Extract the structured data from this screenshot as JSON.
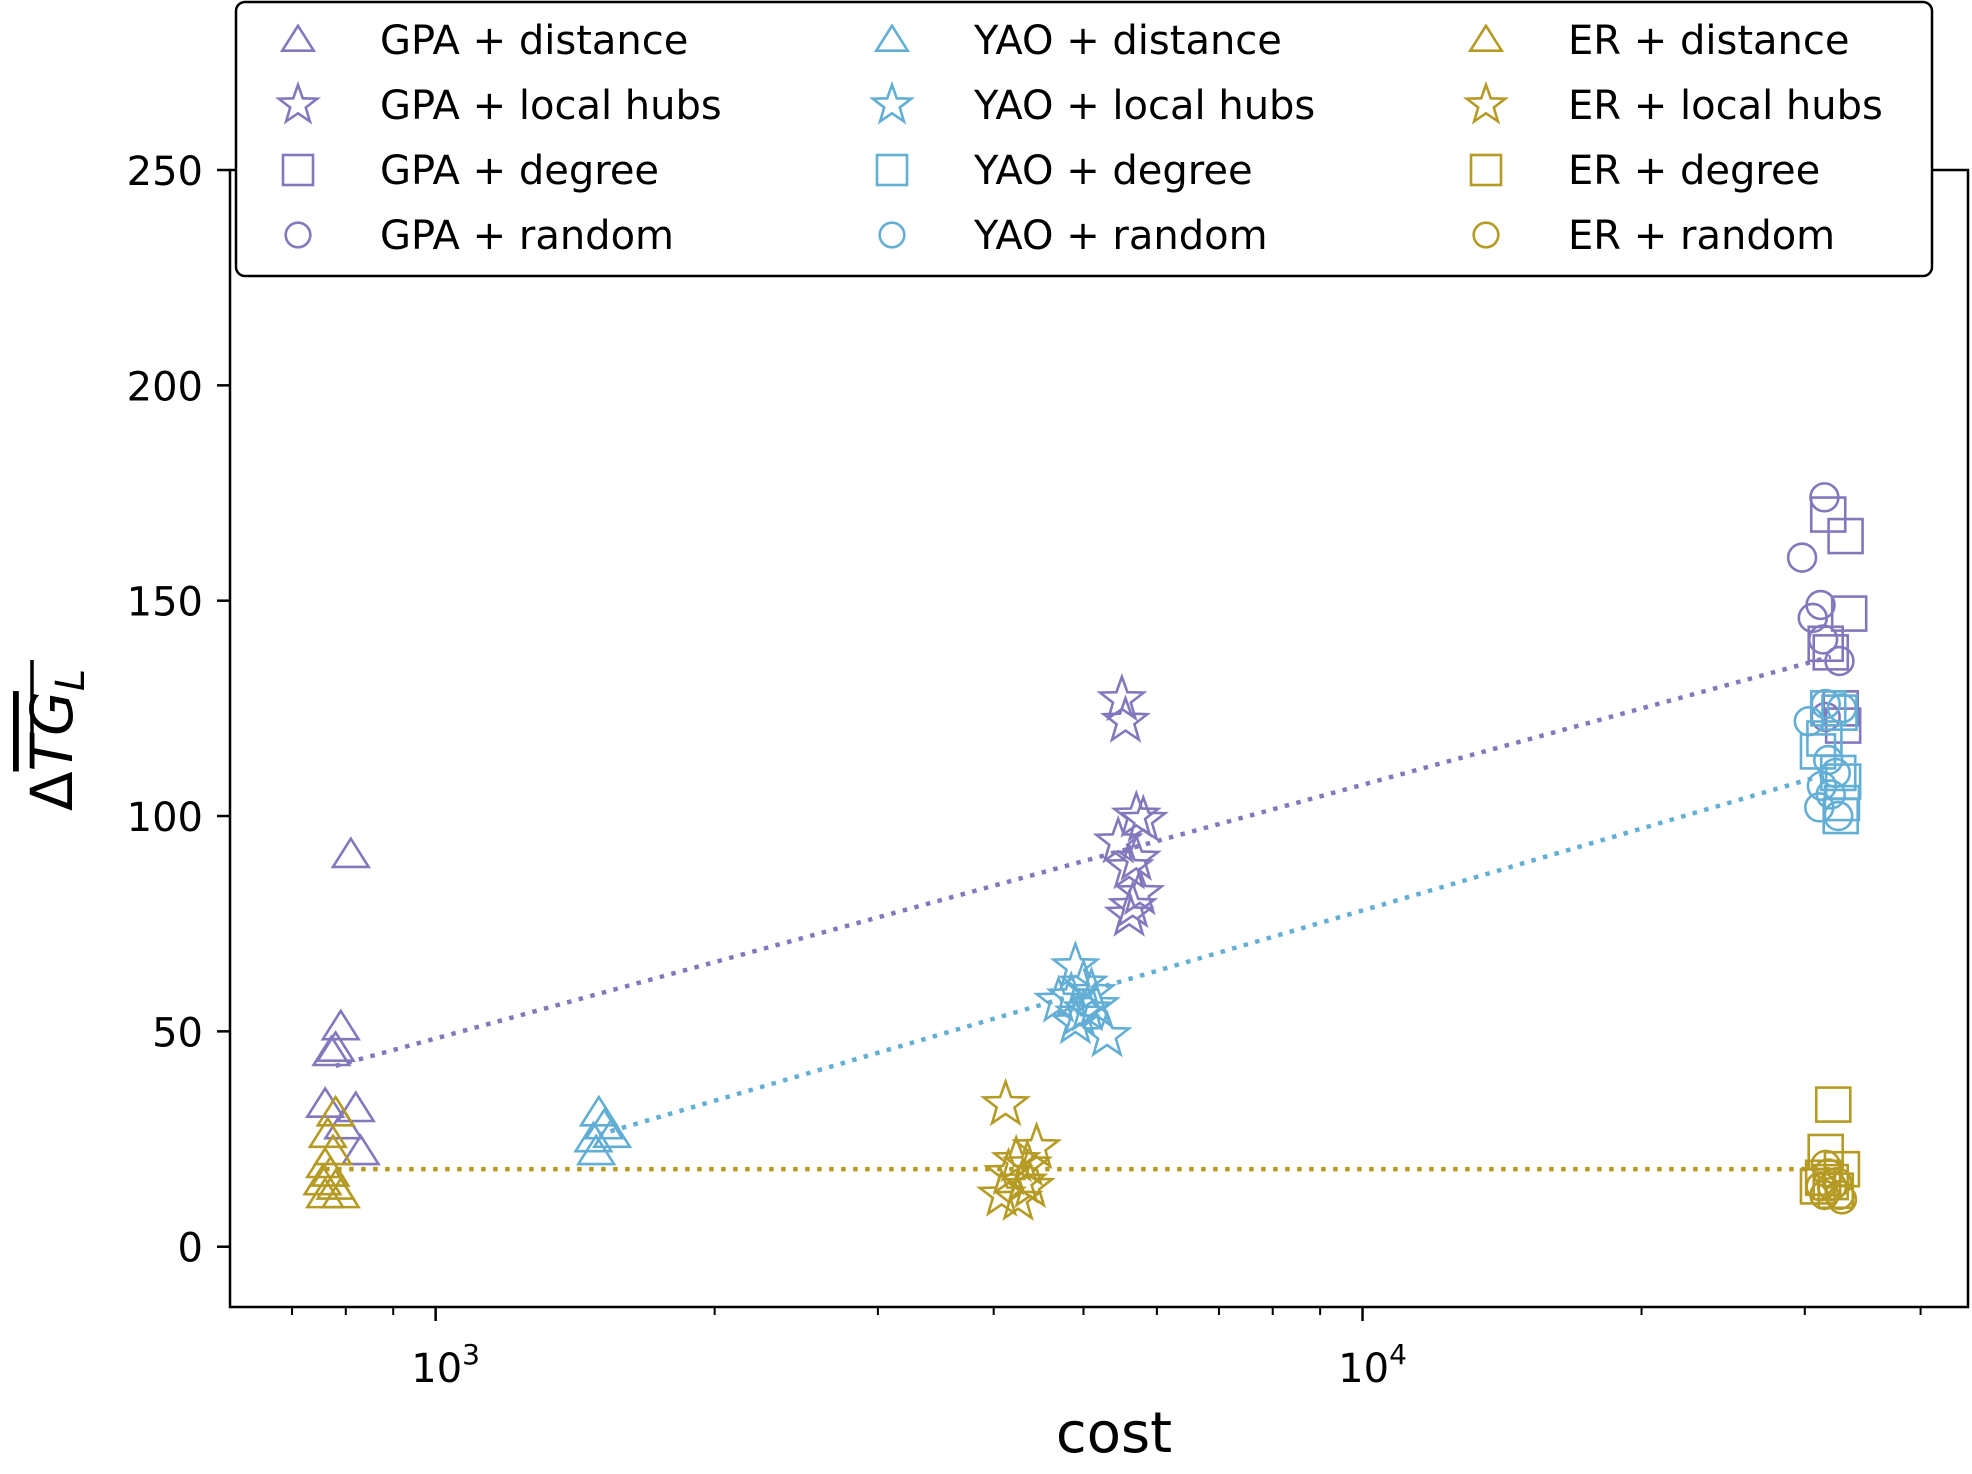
{
  "chart_data": {
    "type": "scatter",
    "title": "",
    "xlabel": "cost",
    "ylabel": "ΔTG_L",
    "xscale": "log",
    "xlim": [
      600,
      45000
    ],
    "ylim": [
      -14,
      250
    ],
    "x_major_ticks": [
      1000,
      10000
    ],
    "x_major_tick_labels": [
      {
        "base": "10",
        "exp": "3"
      },
      {
        "base": "10",
        "exp": "4"
      }
    ],
    "x_minor_ticks": [
      700,
      800,
      900,
      2000,
      3000,
      4000,
      5000,
      6000,
      7000,
      8000,
      9000,
      20000,
      30000,
      40000
    ],
    "y_ticks": [
      0,
      50,
      100,
      150,
      200,
      250
    ],
    "y_tick_labels": [
      "0",
      "50",
      "100",
      "150",
      "200",
      "250"
    ],
    "grid": false,
    "legend_placement": "top",
    "legend_columns": 3,
    "colors": {
      "GPA": "#8478bd",
      "YAO": "#62aed4",
      "ER": "#b59a24"
    },
    "markers": {
      "distance": "triangle",
      "local hubs": "star",
      "degree": "square",
      "random": "circle"
    },
    "series": [
      {
        "name": "GPA + distance",
        "group": "GPA",
        "marker": "triangle",
        "points": [
          [
            810,
            91
          ],
          [
            790,
            51
          ],
          [
            780,
            46
          ],
          [
            772,
            45
          ],
          [
            760,
            33
          ],
          [
            820,
            32
          ],
          [
            795,
            28
          ],
          [
            830,
            22
          ]
        ]
      },
      {
        "name": "GPA + local hubs",
        "group": "GPA",
        "marker": "star",
        "points": [
          [
            5500,
            127
          ],
          [
            5550,
            122
          ],
          [
            5700,
            100
          ],
          [
            5800,
            99
          ],
          [
            5450,
            94
          ],
          [
            5600,
            88
          ],
          [
            5700,
            90
          ],
          [
            5750,
            82
          ],
          [
            5600,
            77
          ],
          [
            5650,
            79
          ]
        ]
      },
      {
        "name": "GPA + degree",
        "group": "GPA",
        "marker": "square",
        "points": [
          [
            31800,
            170
          ],
          [
            33200,
            165
          ],
          [
            33500,
            147
          ],
          [
            31600,
            140
          ],
          [
            32000,
            138
          ],
          [
            32800,
            125
          ],
          [
            33000,
            121
          ]
        ]
      },
      {
        "name": "GPA + random",
        "group": "GPA",
        "marker": "circle",
        "points": [
          [
            31500,
            174
          ],
          [
            29800,
            160
          ],
          [
            30600,
            146
          ],
          [
            31200,
            149
          ],
          [
            31400,
            141
          ],
          [
            32700,
            136
          ],
          [
            31600,
            123
          ]
        ]
      },
      {
        "name": "YAO + distance",
        "group": "YAO",
        "marker": "triangle",
        "points": [
          [
            1500,
            31
          ],
          [
            1520,
            28
          ],
          [
            1480,
            25
          ],
          [
            1550,
            26
          ],
          [
            1490,
            22
          ]
        ]
      },
      {
        "name": "YAO + local hubs",
        "group": "YAO",
        "marker": "star",
        "points": [
          [
            4900,
            65
          ],
          [
            5000,
            61
          ],
          [
            4850,
            58
          ],
          [
            5100,
            59
          ],
          [
            4700,
            57
          ],
          [
            4950,
            54
          ],
          [
            5050,
            55
          ],
          [
            4900,
            52
          ],
          [
            5150,
            56
          ],
          [
            5300,
            49
          ]
        ]
      },
      {
        "name": "YAO + degree",
        "group": "YAO",
        "marker": "square",
        "points": [
          [
            31800,
            125
          ],
          [
            32700,
            124
          ],
          [
            31500,
            118
          ],
          [
            31000,
            115
          ],
          [
            32600,
            110
          ],
          [
            33000,
            108
          ],
          [
            32900,
            103
          ],
          [
            32800,
            100
          ]
        ]
      },
      {
        "name": "YAO + random",
        "group": "YAO",
        "marker": "circle",
        "points": [
          [
            31600,
            126
          ],
          [
            30300,
            122
          ],
          [
            32900,
            125
          ],
          [
            31800,
            113
          ],
          [
            32400,
            110
          ],
          [
            31300,
            107
          ],
          [
            32000,
            105
          ],
          [
            31100,
            102
          ],
          [
            32600,
            100
          ]
        ]
      },
      {
        "name": "ER + distance",
        "group": "ER",
        "marker": "triangle",
        "points": [
          [
            780,
            31
          ],
          [
            765,
            26
          ],
          [
            775,
            22
          ],
          [
            760,
            19
          ],
          [
            770,
            17
          ],
          [
            755,
            15
          ],
          [
            780,
            14
          ],
          [
            760,
            12
          ],
          [
            790,
            12
          ]
        ]
      },
      {
        "name": "ER + local hubs",
        "group": "ER",
        "marker": "star",
        "points": [
          [
            4120,
            33
          ],
          [
            4450,
            23
          ],
          [
            4230,
            20
          ],
          [
            4350,
            19
          ],
          [
            4150,
            17
          ],
          [
            4300,
            15
          ],
          [
            4380,
            14
          ],
          [
            4080,
            12
          ],
          [
            4250,
            11
          ]
        ]
      },
      {
        "name": "ER + degree",
        "group": "ER",
        "marker": "square",
        "points": [
          [
            32200,
            33
          ],
          [
            31600,
            22
          ],
          [
            32900,
            18
          ],
          [
            31400,
            16
          ],
          [
            32000,
            15
          ],
          [
            31000,
            14
          ],
          [
            32400,
            13
          ]
        ]
      },
      {
        "name": "ER + random",
        "group": "ER",
        "marker": "circle",
        "points": [
          [
            31600,
            19
          ],
          [
            31800,
            17
          ],
          [
            32500,
            15
          ],
          [
            31200,
            14
          ],
          [
            32100,
            14
          ],
          [
            31500,
            12
          ],
          [
            32700,
            12
          ],
          [
            32900,
            11
          ]
        ]
      }
    ],
    "fit_lines": [
      {
        "group": "GPA",
        "style": "dotted",
        "x": [
          780,
          32000
        ],
        "y": [
          42,
          137
        ]
      },
      {
        "group": "YAO",
        "style": "dotted",
        "x": [
          1500,
          32000
        ],
        "y": [
          26,
          110
        ]
      },
      {
        "group": "ER",
        "style": "dotted",
        "x": [
          760,
          33000
        ],
        "y": [
          18,
          18
        ]
      }
    ]
  }
}
